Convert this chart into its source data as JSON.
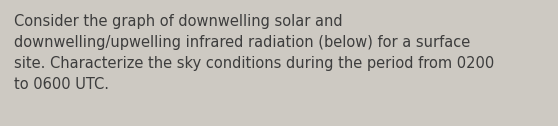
{
  "text_line1": "Consider the graph of downwelling solar and",
  "text_line2": "downwelling/upwelling infrared radiation (below) for a surface",
  "text_line3": "site. Characterize the sky conditions during the period from 0200",
  "text_line4": "to 0600 UTC.",
  "background_color": "#cdc9c2",
  "text_color": "#3d3d3d",
  "font_size": 10.5,
  "fig_width": 5.58,
  "fig_height": 1.26,
  "dpi": 100
}
